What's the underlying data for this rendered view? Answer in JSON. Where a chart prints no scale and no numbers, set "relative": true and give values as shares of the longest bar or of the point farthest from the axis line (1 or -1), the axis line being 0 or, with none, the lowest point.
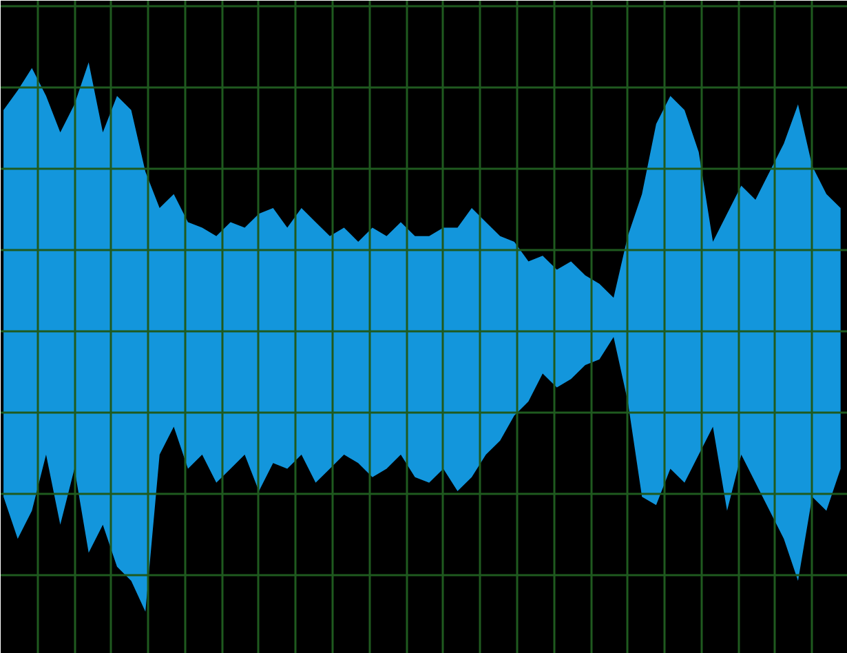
{
  "chart_data": {
    "type": "area",
    "relative": true,
    "grid": true,
    "categories": [
      null,
      null,
      null,
      null,
      null,
      null,
      null,
      null,
      null,
      null,
      null,
      null,
      null,
      null,
      null,
      null,
      null,
      null,
      null,
      null,
      null,
      null,
      null,
      null,
      null,
      null,
      null,
      null,
      null,
      null,
      null,
      null,
      null,
      null,
      null,
      null,
      null,
      null,
      null,
      null,
      null,
      null,
      null,
      null,
      null,
      null,
      null,
      null,
      null,
      null,
      null,
      null,
      null,
      null,
      null,
      null,
      null,
      null,
      null,
      null
    ],
    "series": [
      {
        "color": "#1396dc",
        "values": [
          0.79,
          0.86,
          0.94,
          0.84,
          0.71,
          0.81,
          0.96,
          0.71,
          0.84,
          0.79,
          0.57,
          0.44,
          0.49,
          0.39,
          0.37,
          0.34,
          0.39,
          0.37,
          0.42,
          0.44,
          0.37,
          0.44,
          0.39,
          0.34,
          0.37,
          0.32,
          0.37,
          0.34,
          0.39,
          0.34,
          0.34,
          0.37,
          0.37,
          0.44,
          0.39,
          0.34,
          0.32,
          0.25,
          0.27,
          0.22,
          0.25,
          0.2,
          0.17,
          0.12,
          0.34,
          0.49,
          0.74,
          0.84,
          0.79,
          0.64,
          0.32,
          0.42,
          0.52,
          0.47,
          0.57,
          0.67,
          0.81,
          0.59,
          0.49,
          0.44
        ]
      },
      {
        "color": "#1396dc",
        "values": [
          -0.59,
          -0.74,
          -0.64,
          -0.44,
          -0.69,
          -0.49,
          -0.79,
          -0.69,
          -0.84,
          -0.89,
          -1,
          -0.44,
          -0.34,
          -0.49,
          -0.44,
          -0.54,
          -0.49,
          -0.44,
          -0.57,
          -0.47,
          -0.49,
          -0.44,
          -0.54,
          -0.49,
          -0.44,
          -0.47,
          -0.52,
          -0.49,
          -0.44,
          -0.52,
          -0.54,
          -0.49,
          -0.57,
          -0.52,
          -0.44,
          -0.39,
          -0.3,
          -0.25,
          -0.15,
          -0.2,
          -0.17,
          -0.12,
          -0.1,
          -0.02,
          -0.25,
          -0.59,
          -0.62,
          -0.49,
          -0.54,
          -0.44,
          -0.34,
          -0.64,
          -0.44,
          -0.54,
          -0.64,
          -0.74,
          -0.89,
          -0.59,
          -0.64,
          -0.49
        ]
      }
    ]
  }
}
